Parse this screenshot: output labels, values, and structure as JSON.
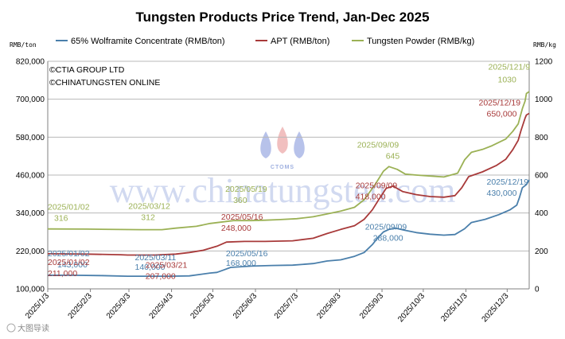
{
  "chart_data": {
    "type": "line",
    "title": "Tungsten Products Price Trend, Jan-Dec 2025",
    "left_axis": {
      "unit": "RMB/ton",
      "ticks": [
        "100,000",
        "220,000",
        "340,000",
        "460,000",
        "580,000",
        "700,000",
        "820,000"
      ],
      "range": [
        100000,
        820000
      ]
    },
    "right_axis": {
      "unit": "RMB/kg",
      "ticks": [
        "0",
        "200",
        "400",
        "600",
        "800",
        "1000",
        "1200"
      ],
      "range": [
        0,
        1200
      ]
    },
    "x_ticks": [
      "2025/1/3",
      "2025/2/3",
      "2025/3/3",
      "2025/4/3",
      "2025/5/3",
      "2025/6/3",
      "2025/7/3",
      "2025/8/3",
      "2025/9/3",
      "2025/10/3",
      "2025/11/3",
      "2025/12/3"
    ],
    "x_tick_days": [
      2,
      33,
      61,
      92,
      122,
      153,
      183,
      214,
      245,
      275,
      306,
      336
    ],
    "x_range_days": [
      2,
      352
    ],
    "grid": true,
    "legend_position": "top",
    "series": [
      {
        "name": "65% Wolframite Concentrate (RMB/ton)",
        "axis": "left",
        "color": "#4a7fab",
        "points": [
          [
            2,
            143000
          ],
          [
            20,
            143000
          ],
          [
            40,
            142000
          ],
          [
            60,
            140000
          ],
          [
            70,
            140000
          ],
          [
            90,
            140000
          ],
          [
            105,
            141000
          ],
          [
            120,
            150000
          ],
          [
            125,
            152000
          ],
          [
            130,
            160000
          ],
          [
            135,
            168000
          ],
          [
            150,
            172000
          ],
          [
            165,
            174000
          ],
          [
            180,
            175000
          ],
          [
            195,
            180000
          ],
          [
            205,
            188000
          ],
          [
            215,
            192000
          ],
          [
            225,
            203000
          ],
          [
            232,
            215000
          ],
          [
            238,
            240000
          ],
          [
            242,
            262000
          ],
          [
            246,
            280000
          ],
          [
            250,
            288000
          ],
          [
            255,
            292000
          ],
          [
            262,
            285000
          ],
          [
            270,
            278000
          ],
          [
            280,
            273000
          ],
          [
            290,
            270000
          ],
          [
            298,
            272000
          ],
          [
            305,
            290000
          ],
          [
            310,
            310000
          ],
          [
            320,
            320000
          ],
          [
            330,
            335000
          ],
          [
            338,
            350000
          ],
          [
            343,
            365000
          ],
          [
            345,
            390000
          ],
          [
            347,
            420000
          ],
          [
            350,
            430000
          ],
          [
            352,
            445000
          ]
        ]
      },
      {
        "name": "APT (RMB/ton)",
        "axis": "left",
        "color": "#a83a3a",
        "points": [
          [
            2,
            211000
          ],
          [
            30,
            210000
          ],
          [
            55,
            208000
          ],
          [
            60,
            207000
          ],
          [
            80,
            207000
          ],
          [
            95,
            210000
          ],
          [
            105,
            215000
          ],
          [
            115,
            222000
          ],
          [
            125,
            235000
          ],
          [
            132,
            248000
          ],
          [
            145,
            250000
          ],
          [
            160,
            250000
          ],
          [
            180,
            252000
          ],
          [
            195,
            260000
          ],
          [
            205,
            275000
          ],
          [
            215,
            288000
          ],
          [
            225,
            300000
          ],
          [
            232,
            320000
          ],
          [
            238,
            350000
          ],
          [
            243,
            385000
          ],
          [
            248,
            418000
          ],
          [
            253,
            425000
          ],
          [
            260,
            408000
          ],
          [
            270,
            398000
          ],
          [
            280,
            392000
          ],
          [
            290,
            390000
          ],
          [
            298,
            395000
          ],
          [
            303,
            420000
          ],
          [
            308,
            455000
          ],
          [
            318,
            470000
          ],
          [
            328,
            490000
          ],
          [
            335,
            510000
          ],
          [
            340,
            540000
          ],
          [
            344,
            570000
          ],
          [
            346,
            600000
          ],
          [
            349,
            640000
          ],
          [
            350,
            650000
          ],
          [
            352,
            655000
          ]
        ]
      },
      {
        "name": "Tungsten Powder (RMB/kg)",
        "axis": "right",
        "color": "#9bb155",
        "points": [
          [
            2,
            316
          ],
          [
            30,
            315
          ],
          [
            55,
            313
          ],
          [
            70,
            312
          ],
          [
            85,
            312
          ],
          [
            95,
            320
          ],
          [
            110,
            330
          ],
          [
            120,
            345
          ],
          [
            137,
            360
          ],
          [
            150,
            360
          ],
          [
            160,
            362
          ],
          [
            170,
            365
          ],
          [
            183,
            370
          ],
          [
            195,
            380
          ],
          [
            205,
            395
          ],
          [
            215,
            410
          ],
          [
            225,
            430
          ],
          [
            232,
            470
          ],
          [
            240,
            550
          ],
          [
            246,
            620
          ],
          [
            250,
            645
          ],
          [
            256,
            630
          ],
          [
            262,
            605
          ],
          [
            270,
            600
          ],
          [
            280,
            595
          ],
          [
            290,
            590
          ],
          [
            300,
            610
          ],
          [
            305,
            680
          ],
          [
            310,
            720
          ],
          [
            318,
            735
          ],
          [
            325,
            755
          ],
          [
            335,
            790
          ],
          [
            340,
            830
          ],
          [
            344,
            870
          ],
          [
            347,
            950
          ],
          [
            349,
            990
          ],
          [
            350,
            1030
          ],
          [
            352,
            1040
          ]
        ]
      }
    ],
    "annotations": [
      {
        "text": "2025/01/02",
        "series": 0,
        "x": 2,
        "v": 143000
      },
      {
        "text": "143,000",
        "series": 0,
        "x": 2,
        "v": 143000
      },
      {
        "text": "2025/03/11",
        "series": 0,
        "x": 70,
        "v": 140000
      },
      {
        "text": "140,000",
        "series": 0,
        "x": 70,
        "v": 140000
      },
      {
        "text": "2025/05/16",
        "series": 0,
        "x": 135,
        "v": 168000
      },
      {
        "text": "168,000",
        "series": 0,
        "x": 135,
        "v": 168000
      },
      {
        "text": "2025/09/09",
        "series": 0,
        "x": 250,
        "v": 288000
      },
      {
        "text": "288,000",
        "series": 0,
        "x": 250,
        "v": 288000
      },
      {
        "text": "2025/12/19",
        "series": 0,
        "x": 350,
        "v": 430000
      },
      {
        "text": "430,000",
        "series": 0,
        "x": 350,
        "v": 430000
      },
      {
        "text": "2025/01/02",
        "series": 1,
        "x": 2,
        "v": 211000
      },
      {
        "text": "211,000",
        "series": 1,
        "x": 2,
        "v": 211000
      },
      {
        "text": "2025/03/21",
        "series": 1,
        "x": 80,
        "v": 207000
      },
      {
        "text": "207,000",
        "series": 1,
        "x": 80,
        "v": 207000
      },
      {
        "text": "2025/05/16",
        "series": 1,
        "x": 135,
        "v": 248000
      },
      {
        "text": "248,000",
        "series": 1,
        "x": 135,
        "v": 248000
      },
      {
        "text": "2025/09/09",
        "series": 1,
        "x": 250,
        "v": 418000
      },
      {
        "text": "418,000",
        "series": 1,
        "x": 250,
        "v": 418000
      },
      {
        "text": "2025/12/19",
        "series": 1,
        "x": 350,
        "v": 650000
      },
      {
        "text": "650,000",
        "series": 1,
        "x": 350,
        "v": 650000
      },
      {
        "text": "2025/01/02",
        "series": 2,
        "x": 2,
        "v": 316
      },
      {
        "text": "316",
        "series": 2,
        "x": 2,
        "v": 316
      },
      {
        "text": "2025/03/12",
        "series": 2,
        "x": 71,
        "v": 312
      },
      {
        "text": "312",
        "series": 2,
        "x": 71,
        "v": 312
      },
      {
        "text": "2025/05/19",
        "series": 2,
        "x": 138,
        "v": 360
      },
      {
        "text": "360",
        "series": 2,
        "x": 138,
        "v": 360
      },
      {
        "text": "2025/09/09",
        "series": 2,
        "x": 250,
        "v": 645
      },
      {
        "text": "645",
        "series": 2,
        "x": 250,
        "v": 645
      },
      {
        "text": "2025/121/9",
        "series": 2,
        "x": 350,
        "v": 1030
      },
      {
        "text": "1030",
        "series": 2,
        "x": 350,
        "v": 1030
      }
    ],
    "credits": [
      "©CTIA GROUP LTD",
      "©CHINATUNGSTEN ONLINE"
    ],
    "watermark": {
      "text": "www.chinatungsten.com",
      "logo_text": "CTOMS"
    },
    "source_mark": "大图导读"
  }
}
